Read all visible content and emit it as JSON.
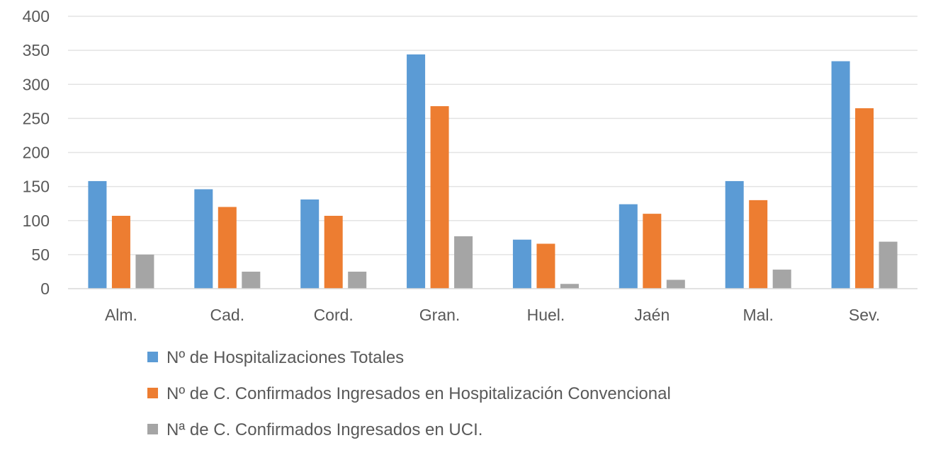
{
  "chart_data": {
    "type": "bar",
    "categories": [
      "Alm.",
      "Cad.",
      "Cord.",
      "Gran.",
      "Huel.",
      "Jaén",
      "Mal.",
      "Sev."
    ],
    "series": [
      {
        "name": "Nº de Hospitalizaciones Totales",
        "color": "#5b9bd5",
        "values": [
          158,
          146,
          131,
          344,
          72,
          124,
          158,
          334
        ]
      },
      {
        "name": "Nº de C. Confirmados Ingresados en Hospitalización Convencional",
        "color": "#ed7d31",
        "values": [
          107,
          120,
          107,
          268,
          66,
          110,
          130,
          265
        ]
      },
      {
        "name": "Nª de C. Confirmados Ingresados en UCI.",
        "color": "#a5a5a5",
        "values": [
          50,
          25,
          25,
          77,
          7,
          13,
          28,
          69
        ]
      }
    ],
    "yticks": [
      "0",
      "50",
      "100",
      "150",
      "200",
      "250",
      "300",
      "350",
      "400"
    ],
    "ylim": [
      0,
      400
    ],
    "grid": true,
    "legend_position": "bottom"
  }
}
